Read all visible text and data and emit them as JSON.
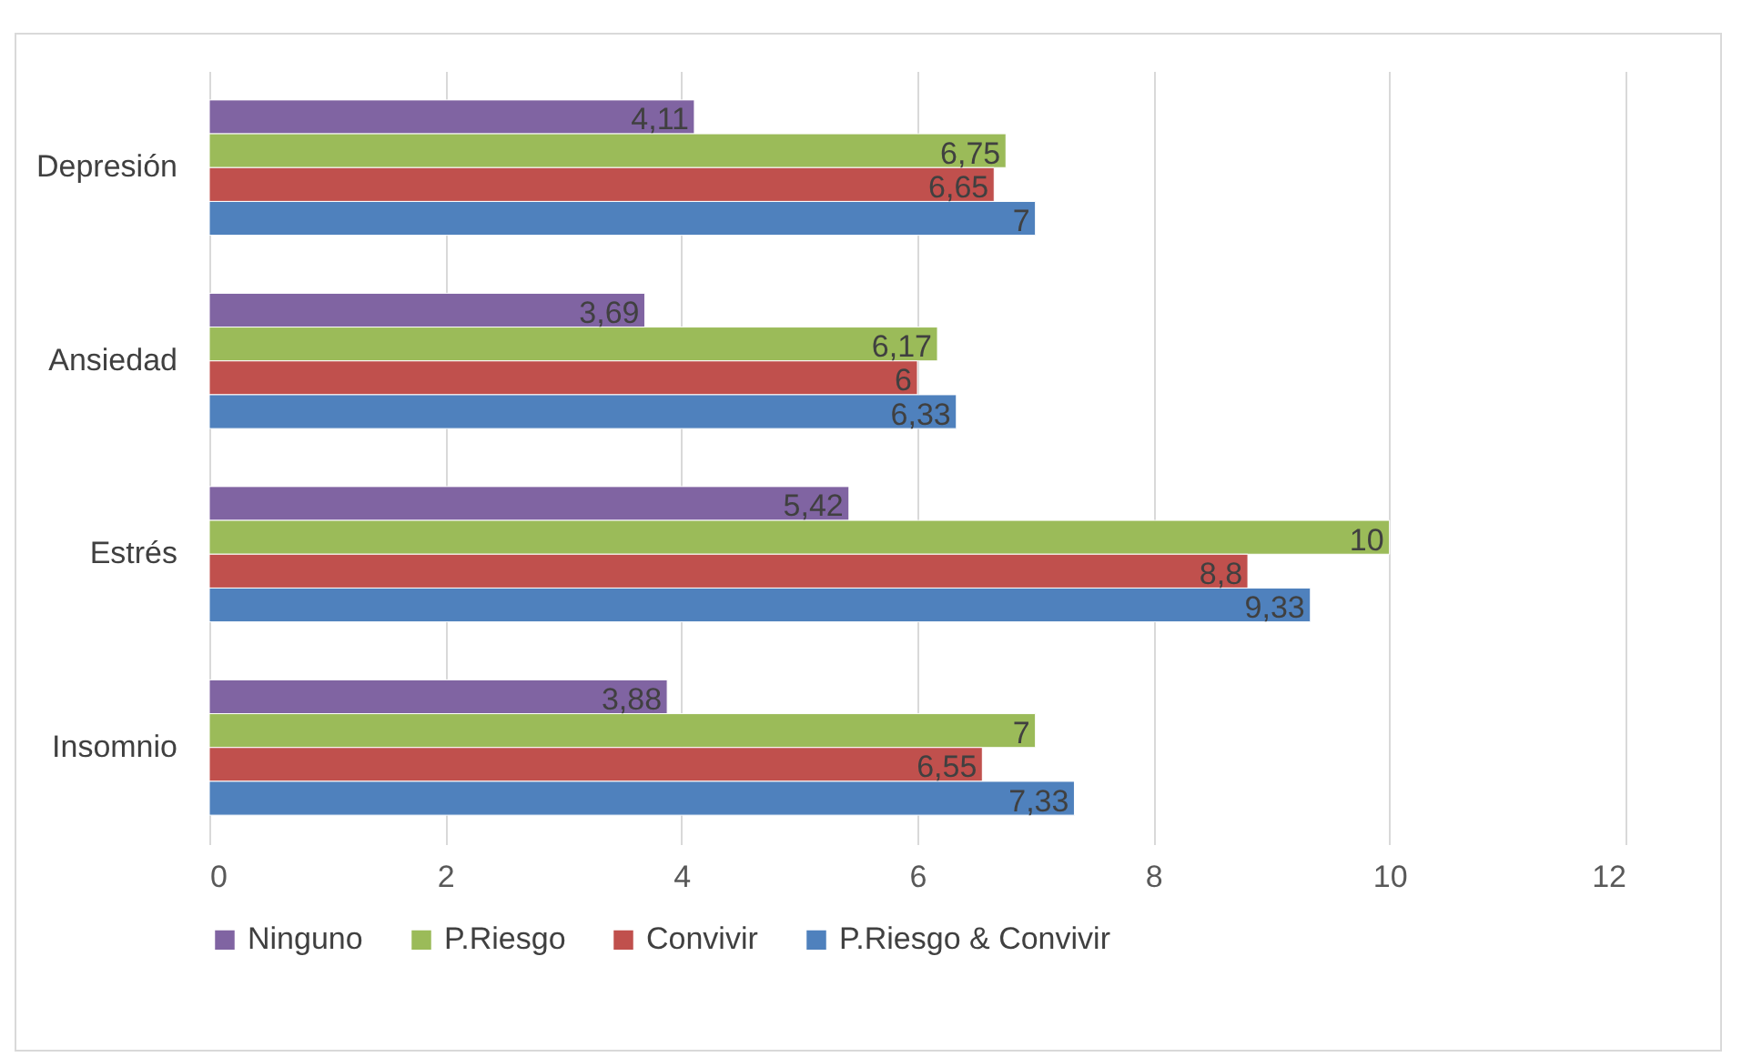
{
  "chart_data": {
    "type": "bar",
    "orientation": "horizontal",
    "categories": [
      "Depresión",
      "Ansiedad",
      "Estrés",
      "Insomnio"
    ],
    "series": [
      {
        "name": "Ninguno",
        "color": "#8064a2",
        "values": [
          4.11,
          3.69,
          5.42,
          3.88
        ],
        "value_labels": [
          "4,11",
          "3,69",
          "5,42",
          "3,88"
        ]
      },
      {
        "name": "P.Riesgo",
        "color": "#9bbb59",
        "values": [
          6.75,
          6.17,
          10,
          7
        ],
        "value_labels": [
          "6,75",
          "6,17",
          "10",
          "7"
        ]
      },
      {
        "name": "Convivir",
        "color": "#c0504d",
        "values": [
          6.65,
          6,
          8.8,
          6.55
        ],
        "value_labels": [
          "6,65",
          "6",
          "8,8",
          "6,55"
        ]
      },
      {
        "name": "P.Riesgo & Convivir",
        "color": "#4f81bd",
        "values": [
          7,
          6.33,
          9.33,
          7.33
        ],
        "value_labels": [
          "7",
          "6,33",
          "9,33",
          "7,33"
        ]
      }
    ],
    "xlim": [
      0,
      12
    ],
    "xticks": [
      0,
      2,
      4,
      6,
      8,
      10,
      12
    ],
    "grid": "x",
    "legend": "bottom"
  }
}
